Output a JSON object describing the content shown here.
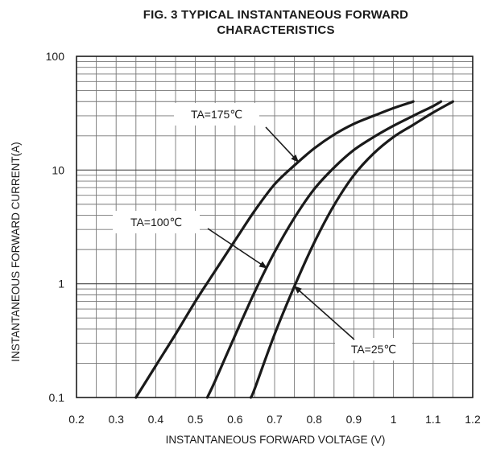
{
  "chart_data": {
    "type": "line",
    "title": "FIG. 3 TYPICAL INSTANTANEOUS FORWARD",
    "subtitle": "CHARACTERISTICS",
    "xlabel": "INSTANTANEOUS FORWARD VOLTAGE (V)",
    "ylabel": "INSTANTANEOUS FORWARD CURRENT(A)",
    "xlim": [
      0.2,
      1.2
    ],
    "ylim": [
      0.1,
      100
    ],
    "yscale": "log",
    "grid": true,
    "xticks": [
      "0.2",
      "0.3",
      "0.4",
      "0.5",
      "0.6",
      "0.7",
      "0.8",
      "0.9",
      "1",
      "1.1",
      "1.2"
    ],
    "yticks": [
      "0.1",
      "1",
      "10",
      "100"
    ],
    "series": [
      {
        "name": "TA=175℃",
        "x": [
          0.35,
          0.4,
          0.45,
          0.5,
          0.55,
          0.6,
          0.65,
          0.7,
          0.75,
          0.8,
          0.85,
          0.9,
          0.95,
          1.0,
          1.05
        ],
        "y": [
          0.1,
          0.19,
          0.36,
          0.7,
          1.3,
          2.4,
          4.4,
          7.5,
          11.0,
          15.5,
          20.5,
          25.5,
          30.0,
          35.0,
          40.0
        ]
      },
      {
        "name": "TA=100℃",
        "x": [
          0.53,
          0.55,
          0.6,
          0.65,
          0.7,
          0.75,
          0.8,
          0.85,
          0.9,
          0.95,
          1.0,
          1.05,
          1.1,
          1.12
        ],
        "y": [
          0.1,
          0.14,
          0.35,
          0.85,
          1.9,
          3.8,
          6.8,
          10.5,
          15.0,
          19.5,
          24.5,
          30.0,
          36.5,
          40.0
        ]
      },
      {
        "name": "TA=25℃",
        "x": [
          0.64,
          0.65,
          0.7,
          0.75,
          0.8,
          0.85,
          0.9,
          0.95,
          1.0,
          1.05,
          1.1,
          1.15
        ],
        "y": [
          0.1,
          0.12,
          0.36,
          0.95,
          2.3,
          4.9,
          9.0,
          14.0,
          19.5,
          25.0,
          32.0,
          40.0
        ]
      }
    ],
    "annotations": [
      {
        "text": "TA=175℃",
        "series": 0,
        "at_x": 0.76
      },
      {
        "text": "TA=100℃",
        "series": 1,
        "at_x": 0.68
      },
      {
        "text": "TA=25℃",
        "series": 2,
        "at_x": 0.75
      }
    ]
  }
}
